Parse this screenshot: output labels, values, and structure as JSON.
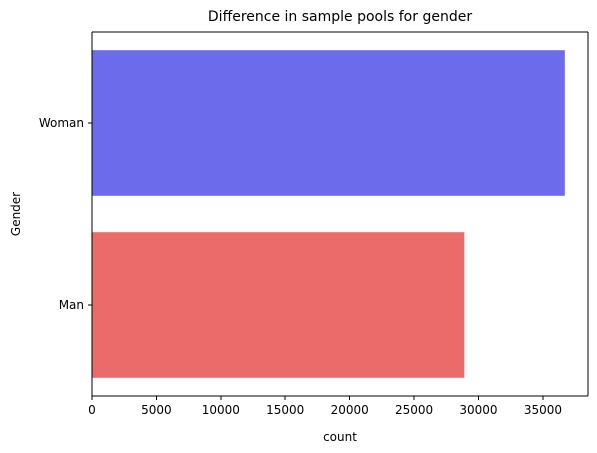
{
  "chart_data": {
    "type": "bar",
    "orientation": "horizontal",
    "title": "Difference in sample pools for gender",
    "xlabel": "count",
    "ylabel": "Gender",
    "categories": [
      "Woman",
      "Man"
    ],
    "values": [
      36700,
      28900
    ],
    "colors": [
      "#6b6bec",
      "#eb6a6a"
    ],
    "xlim": [
      0,
      38500
    ],
    "xticks": [
      0,
      5000,
      10000,
      15000,
      20000,
      25000,
      30000,
      35000
    ],
    "grid": false,
    "legend": "none"
  }
}
